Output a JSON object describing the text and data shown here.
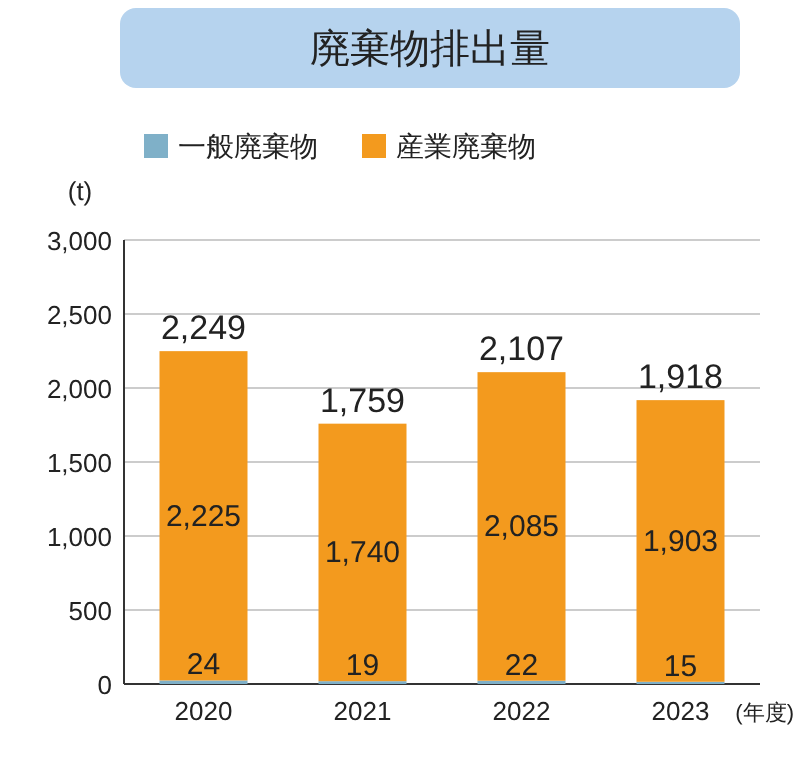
{
  "chart_data": {
    "type": "bar",
    "title": "廃棄物排出量",
    "stacked": true,
    "categories": [
      "2020",
      "2021",
      "2022",
      "2023"
    ],
    "series": [
      {
        "name": "一般廃棄物",
        "color": "#7fb0c8",
        "values": [
          24,
          19,
          22,
          15
        ],
        "value_labels": [
          "24",
          "19",
          "22",
          "15"
        ]
      },
      {
        "name": "産業廃棄物",
        "color": "#f39a1e",
        "values": [
          2225,
          1740,
          2085,
          1903
        ],
        "value_labels": [
          "2,225",
          "1,740",
          "2,085",
          "1,903"
        ]
      }
    ],
    "totals": [
      "2,249",
      "1,759",
      "2,107",
      "1,918"
    ],
    "ylabel": "(t)",
    "xlabel": "(年度)",
    "ylim": [
      0,
      3000
    ],
    "yticks": [
      {
        "value": 0,
        "label": "0"
      },
      {
        "value": 500,
        "label": "500"
      },
      {
        "value": 1000,
        "label": "1,000"
      },
      {
        "value": 1500,
        "label": "1,500"
      },
      {
        "value": 2000,
        "label": "2,000"
      },
      {
        "value": 2500,
        "label": "2,500"
      },
      {
        "value": 3000,
        "label": "3,000"
      }
    ],
    "grid": "y",
    "legend": "top"
  }
}
